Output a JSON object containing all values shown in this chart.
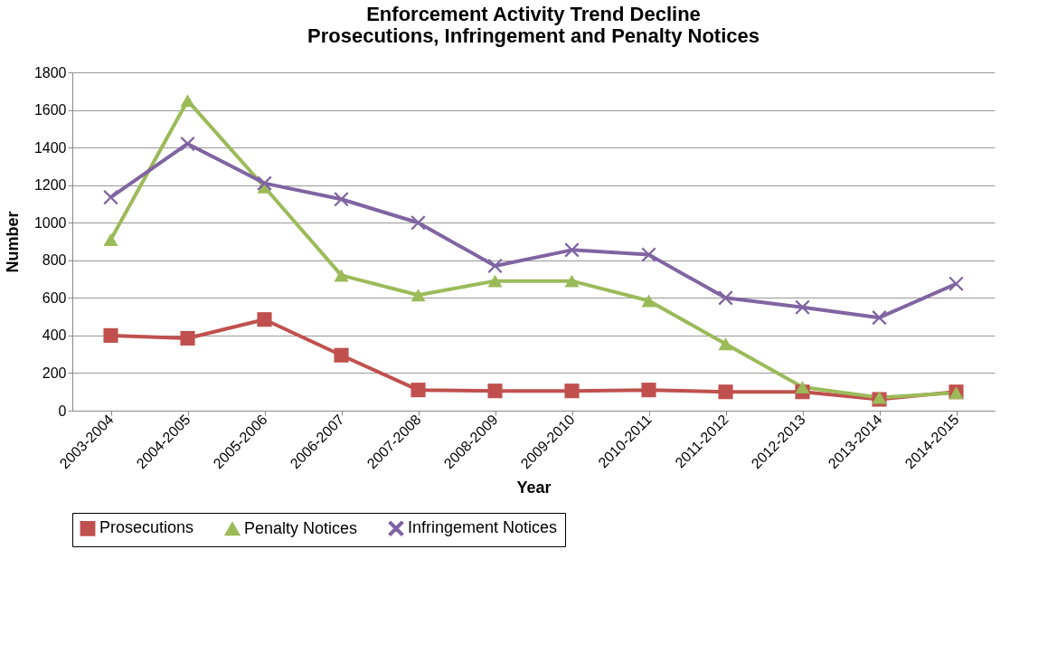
{
  "chart_data": {
    "type": "line",
    "title": "Enforcement Activity Trend Decline\nProsecutions, Infringement and Penalty Notices",
    "xlabel": "Year",
    "ylabel": "Number",
    "categories": [
      "2003-2004",
      "2004-2005",
      "2005-2006",
      "2006-2007",
      "2007-2008",
      "2008-2009",
      "2009-2010",
      "2010-2011",
      "2011-2012",
      "2012-2013",
      "2013-2014",
      "2014-2015"
    ],
    "series": [
      {
        "name": "Prosecutions",
        "color": "#c0504d",
        "marker": "square",
        "values": [
          400,
          385,
          485,
          295,
          110,
          105,
          105,
          110,
          100,
          100,
          60,
          100
        ]
      },
      {
        "name": "Penalty Notices",
        "color": "#9bbb59",
        "marker": "triangle",
        "values": [
          910,
          1650,
          1190,
          720,
          615,
          690,
          690,
          585,
          355,
          125,
          70,
          95
        ]
      },
      {
        "name": "Infringement Notices",
        "color": "#8064a2",
        "marker": "cross",
        "values": [
          1135,
          1420,
          1210,
          1125,
          1000,
          770,
          855,
          830,
          600,
          550,
          495,
          675
        ]
      }
    ],
    "ylim": [
      0,
      1800
    ],
    "yticks": [
      0,
      200,
      400,
      600,
      800,
      1000,
      1200,
      1400,
      1600,
      1800
    ],
    "grid": "y",
    "legend": "bottom",
    "line_style": "solid"
  }
}
